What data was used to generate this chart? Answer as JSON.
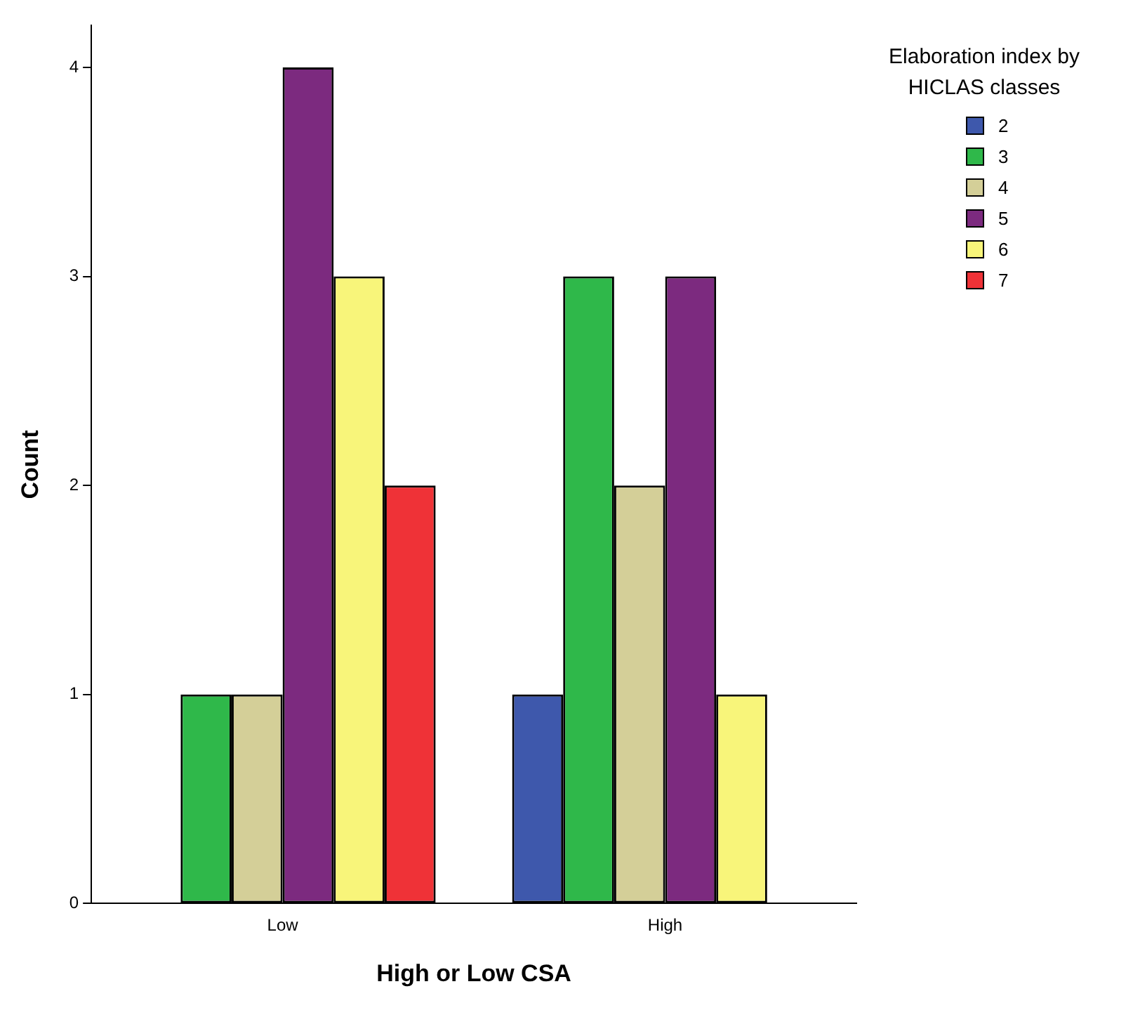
{
  "chart_data": {
    "type": "bar",
    "xlabel": "High or Low CSA",
    "ylabel": "Count",
    "legend_title": "Elaboration index by HICLAS classes",
    "categories": [
      "Low",
      "High"
    ],
    "series": [
      {
        "name": "2",
        "color": "#3e58ac",
        "values": [
          0,
          1
        ]
      },
      {
        "name": "3",
        "color": "#2fb84a",
        "values": [
          1,
          3
        ]
      },
      {
        "name": "4",
        "color": "#d4cf98",
        "values": [
          1,
          2
        ]
      },
      {
        "name": "5",
        "color": "#7c2a7f",
        "values": [
          4,
          3
        ]
      },
      {
        "name": "6",
        "color": "#f8f57a",
        "values": [
          3,
          1
        ]
      },
      {
        "name": "7",
        "color": "#ef3237",
        "values": [
          2,
          0
        ]
      }
    ],
    "ylim": [
      0,
      4.2
    ],
    "yticks": [
      0,
      1,
      2,
      3,
      4
    ],
    "grid": false,
    "legend": "top right"
  }
}
